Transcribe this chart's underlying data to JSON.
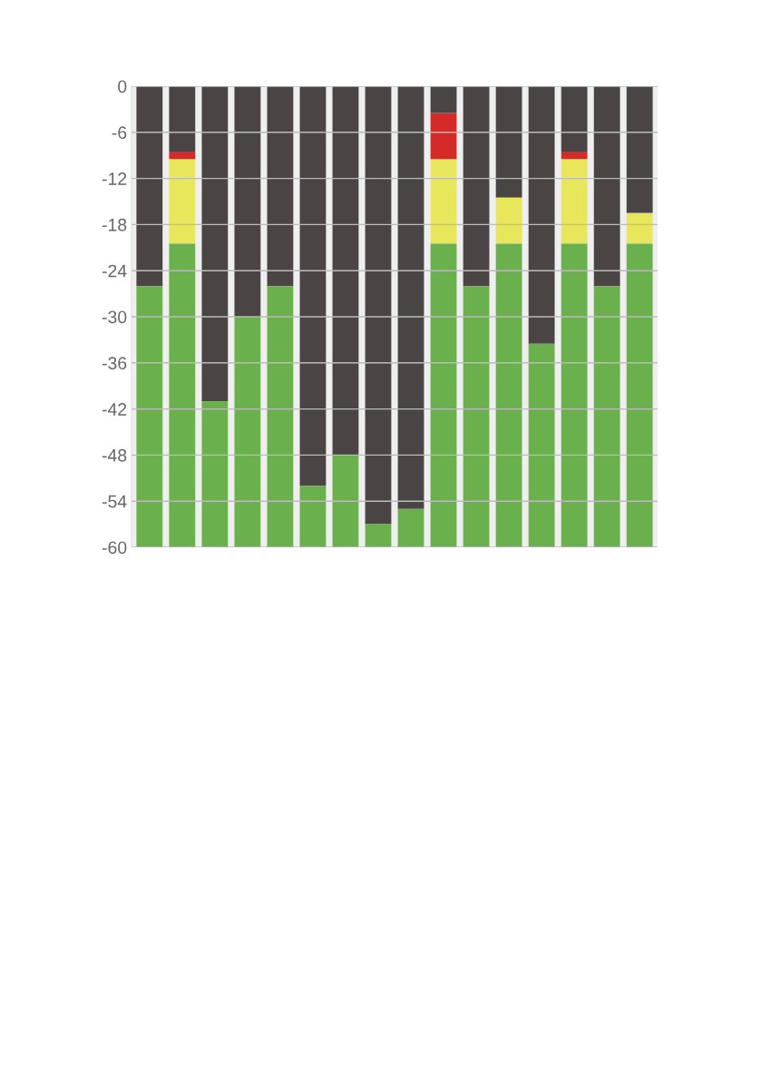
{
  "chart_data": {
    "type": "bar",
    "stacked": true,
    "categories": [
      null,
      null,
      null,
      null,
      null,
      null,
      null,
      null,
      null,
      null,
      null,
      null,
      null,
      null,
      null,
      null
    ],
    "series": [
      {
        "color": "#4a4444",
        "values": [
          -26,
          -8.5,
          -41,
          -30,
          -26,
          -52,
          -48,
          -57,
          -55,
          -3.5,
          -26,
          -14.5,
          -33.5,
          -8.5,
          -26,
          -16.5
        ]
      },
      {
        "color": "#d42a2a",
        "values": [
          0,
          -1,
          0,
          0,
          0,
          0,
          0,
          0,
          0,
          -6,
          0,
          0,
          0,
          -1,
          0,
          0
        ]
      },
      {
        "color": "#e8e65a",
        "values": [
          0,
          -11,
          0,
          0,
          0,
          0,
          0,
          0,
          0,
          -11,
          0,
          -6,
          0,
          -11,
          0,
          -4
        ]
      },
      {
        "color": "#6ab04c",
        "values": [
          -34,
          -39.5,
          -19,
          -30,
          -34,
          -8,
          -12,
          -3,
          -5,
          -39.5,
          -34,
          -39.5,
          -26.5,
          -39.5,
          -34,
          -39.5
        ]
      }
    ],
    "ylim": [
      -60,
      0
    ],
    "yticks": [
      0,
      -6,
      -12,
      -18,
      -24,
      -30,
      -36,
      -42,
      -48,
      -54,
      -60
    ],
    "grid": "y"
  }
}
